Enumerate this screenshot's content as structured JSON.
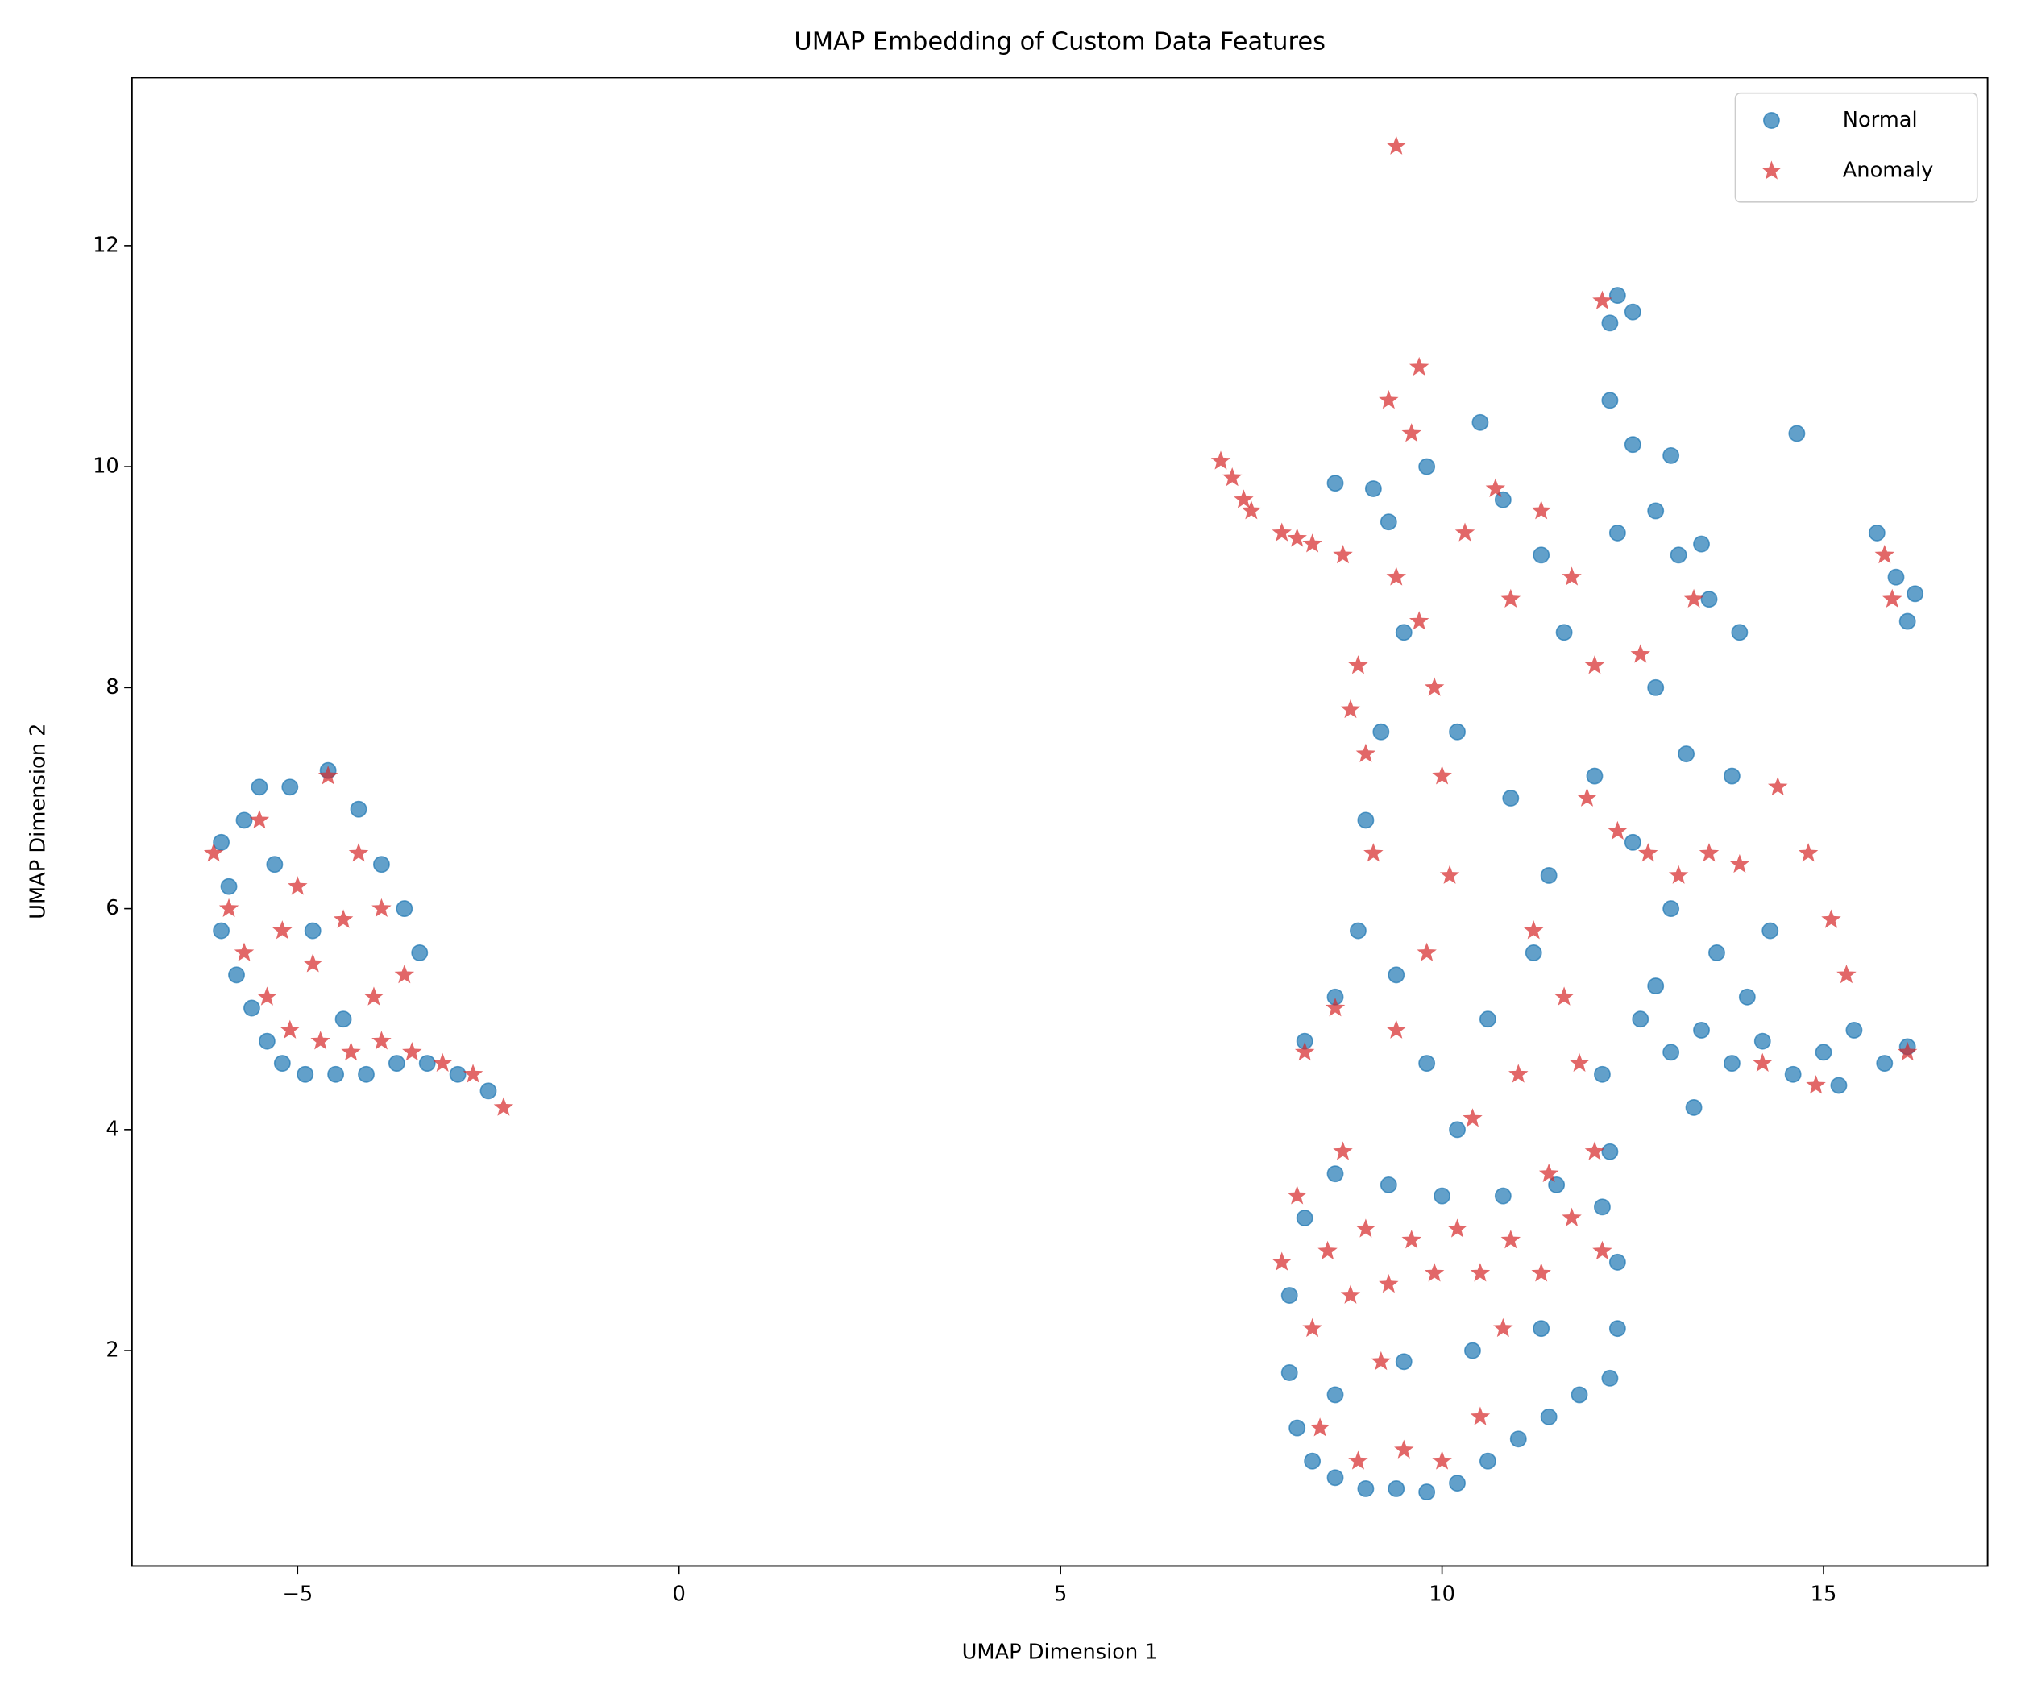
{
  "chart_data": {
    "type": "scatter",
    "title": "UMAP Embedding of Custom Data Features",
    "x_label": "UMAP Dimension 1",
    "y_label": "UMAP Dimension 2",
    "xlim": [
      -7.17,
      17.15
    ],
    "ylim": [
      0.05,
      13.52
    ],
    "xticks": [
      {
        "value": -5,
        "label": "−5"
      },
      0,
      5,
      10,
      15
    ],
    "yticks": [
      2,
      4,
      6,
      8,
      10,
      12
    ],
    "grid": false,
    "legend": "upper right",
    "series": [
      {
        "name": "Normal",
        "color": "#1f77b4",
        "marker": "circle",
        "alpha": 0.7,
        "x": [
          -6.0,
          -5.9,
          -6.0,
          -5.8,
          -5.6,
          -5.4,
          -5.2,
          -4.9,
          -4.5,
          -4.1,
          -3.7,
          -3.3,
          -2.9,
          -2.5,
          -5.5,
          -5.1,
          -4.6,
          -4.2,
          -3.9,
          -3.6,
          -3.4,
          -5.3,
          -4.8,
          -4.4,
          -5.7,
          8.0,
          8.0,
          8.1,
          8.3,
          8.6,
          9.0,
          9.4,
          9.8,
          10.2,
          10.6,
          11.0,
          11.4,
          11.8,
          12.2,
          12.3,
          12.3,
          12.1,
          11.5,
          10.8,
          10.0,
          9.3,
          8.6,
          8.2,
          8.6,
          9.5,
          10.4,
          11.3,
          8.2,
          8.6,
          8.9,
          9.4,
          9.8,
          10.2,
          10.6,
          11.2,
          12.1,
          12.2,
          9.0,
          9.2,
          9.5,
          9.3,
          9.8,
          10.5,
          10.8,
          11.3,
          11.6,
          10.2,
          10.9,
          11.4,
          9.1,
          8.6,
          12.0,
          12.5,
          13.0,
          13.6,
          14.3,
          13.2,
          13.8,
          12.8,
          12.6,
          13.0,
          13.4,
          13.8,
          14.2,
          14.6,
          15.0,
          15.4,
          15.8,
          16.1,
          14.0,
          15.2,
          13.3,
          12.8,
          12.2,
          12.5,
          12.8,
          13.1,
          13.5,
          13.9,
          13.4,
          13.0,
          12.3,
          12.3,
          12.5,
          12.2,
          14.65,
          15.7,
          15.95,
          16.1,
          16.2
        ],
        "y": [
          6.6,
          6.2,
          5.8,
          5.4,
          5.1,
          4.8,
          4.6,
          4.5,
          4.5,
          4.5,
          4.6,
          4.6,
          4.5,
          4.35,
          7.1,
          7.1,
          7.25,
          6.9,
          6.4,
          6.0,
          5.6,
          6.4,
          5.8,
          5.0,
          6.8,
          2.5,
          1.8,
          1.3,
          1.0,
          0.85,
          0.75,
          0.75,
          0.72,
          0.8,
          1.0,
          1.2,
          1.4,
          1.6,
          1.75,
          2.2,
          2.8,
          3.3,
          3.5,
          3.4,
          3.4,
          3.5,
          3.6,
          3.2,
          1.6,
          1.9,
          2.0,
          2.2,
          4.8,
          5.2,
          5.8,
          5.4,
          4.6,
          4.0,
          5.0,
          5.6,
          4.5,
          3.8,
          6.8,
          7.6,
          8.5,
          9.5,
          10.0,
          10.4,
          9.7,
          9.2,
          8.5,
          7.6,
          7.0,
          6.3,
          9.8,
          9.85,
          7.2,
          6.6,
          6.0,
          5.6,
          5.8,
          7.4,
          7.2,
          8.0,
          5.0,
          4.7,
          4.9,
          4.6,
          4.8,
          4.5,
          4.7,
          4.9,
          4.6,
          4.75,
          5.2,
          4.4,
          4.2,
          5.3,
          10.6,
          10.2,
          9.6,
          9.2,
          8.8,
          8.5,
          9.3,
          10.1,
          9.4,
          11.55,
          11.4,
          11.3,
          10.3,
          9.4,
          9.0,
          8.6,
          8.85
        ]
      },
      {
        "name": "Anomaly",
        "color": "#d62728",
        "marker": "star",
        "alpha": 0.7,
        "x": [
          -6.1,
          -5.9,
          -5.7,
          -5.4,
          -5.1,
          -4.7,
          -4.3,
          -3.9,
          -3.5,
          -3.1,
          -2.7,
          -2.3,
          -4.6,
          -4.2,
          -3.9,
          -5.5,
          -5.0,
          -4.8,
          -4.4,
          -3.6,
          -5.2,
          -4.0,
          7.1,
          7.25,
          7.4,
          7.5,
          7.9,
          8.1,
          8.3,
          8.7,
          9.4,
          9.3,
          9.6,
          9.7,
          8.9,
          8.8,
          9.0,
          9.1,
          9.4,
          9.7,
          9.9,
          10.0,
          10.1,
          9.8,
          10.3,
          10.7,
          10.9,
          11.3,
          11.7,
          12.0,
          11.2,
          11.6,
          11.8,
          11.0,
          10.4,
          9.4,
          8.6,
          8.2,
          8.7,
          11.9,
          12.3,
          12.7,
          13.1,
          13.5,
          13.9,
          14.4,
          14.8,
          15.1,
          15.3,
          13.3,
          12.6,
          14.2,
          14.9,
          16.1,
          15.8,
          15.9,
          12.1,
          7.9,
          8.1,
          8.3,
          8.5,
          8.8,
          9.0,
          9.3,
          9.6,
          9.9,
          10.2,
          10.5,
          10.9,
          11.3,
          11.7,
          12.1,
          8.4,
          8.9,
          9.5,
          10.0,
          10.5,
          9.2,
          10.8,
          11.4,
          12.0
        ],
        "y": [
          6.5,
          6.0,
          5.6,
          5.2,
          4.9,
          4.8,
          4.7,
          4.8,
          4.7,
          4.6,
          4.5,
          4.2,
          7.2,
          6.5,
          6.0,
          6.8,
          6.2,
          5.5,
          5.9,
          5.4,
          5.8,
          5.2,
          10.05,
          9.9,
          9.7,
          9.6,
          9.4,
          9.35,
          9.3,
          9.2,
          12.9,
          10.6,
          10.3,
          10.9,
          8.2,
          7.8,
          7.4,
          6.5,
          9.0,
          8.6,
          8.0,
          7.2,
          6.3,
          5.6,
          9.4,
          9.8,
          8.8,
          9.6,
          9.0,
          8.2,
          5.8,
          5.2,
          4.6,
          4.5,
          4.1,
          4.9,
          5.1,
          4.7,
          3.8,
          7.0,
          6.7,
          6.5,
          6.3,
          6.5,
          6.4,
          7.1,
          6.5,
          5.9,
          5.4,
          8.8,
          8.3,
          4.6,
          4.4,
          4.7,
          9.2,
          8.8,
          11.5,
          2.8,
          3.4,
          2.2,
          2.9,
          2.5,
          3.1,
          2.6,
          3.0,
          2.7,
          3.1,
          2.7,
          3.0,
          2.7,
          3.2,
          2.9,
          1.3,
          1.0,
          1.1,
          1.0,
          1.4,
          1.9,
          2.2,
          3.6,
          3.8
        ]
      }
    ]
  }
}
